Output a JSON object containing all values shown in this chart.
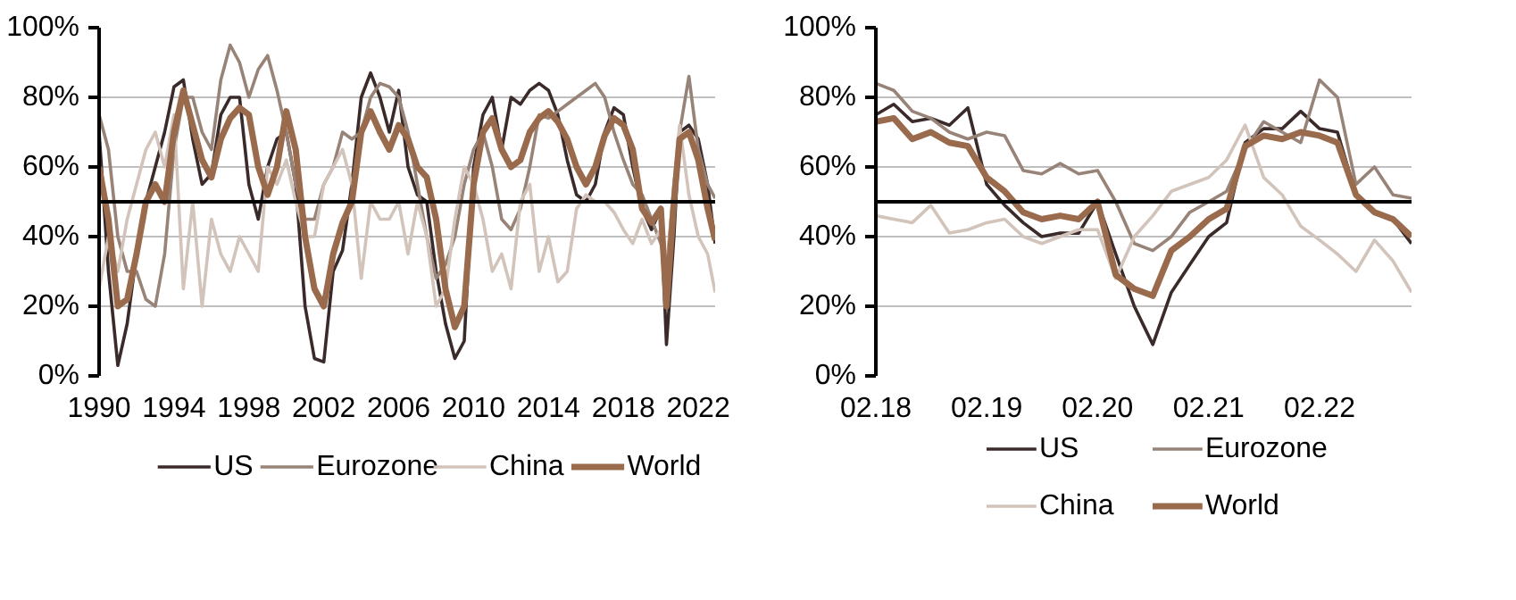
{
  "chart_data": [
    {
      "type": "line",
      "x": [
        1990,
        1990.5,
        1991,
        1991.5,
        1992,
        1992.5,
        1993,
        1993.5,
        1994,
        1994.5,
        1995,
        1995.5,
        1996,
        1996.5,
        1997,
        1997.5,
        1998,
        1998.5,
        1999,
        1999.5,
        2000,
        2000.5,
        2001,
        2001.5,
        2002,
        2002.5,
        2003,
        2003.5,
        2004,
        2004.5,
        2005,
        2005.5,
        2006,
        2006.5,
        2007,
        2007.5,
        2008,
        2008.5,
        2009,
        2009.5,
        2010,
        2010.5,
        2011,
        2011.5,
        2012,
        2012.5,
        2013,
        2013.5,
        2014,
        2014.5,
        2015,
        2015.5,
        2016,
        2016.5,
        2017,
        2017.5,
        2018,
        2018.5,
        2019,
        2019.5,
        2020,
        2020.3,
        2020.7,
        2021,
        2021.5,
        2022,
        2022.5,
        2022.9
      ],
      "series": [
        {
          "name": "US",
          "color": "#3b2a2a",
          "values": [
            70,
            30,
            3,
            15,
            35,
            50,
            60,
            70,
            83,
            85,
            68,
            55,
            58,
            75,
            80,
            80,
            55,
            45,
            60,
            68,
            70,
            55,
            20,
            5,
            4,
            30,
            36,
            55,
            80,
            87,
            80,
            70,
            82,
            60,
            52,
            50,
            30,
            15,
            5,
            10,
            60,
            75,
            80,
            65,
            80,
            78,
            82,
            84,
            82,
            75,
            62,
            52,
            50,
            55,
            70,
            77,
            75,
            60,
            48,
            42,
            48,
            9,
            40,
            70,
            72,
            68,
            55,
            38
          ]
        },
        {
          "name": "Eurozone",
          "color": "#978377",
          "values": [
            75,
            65,
            40,
            30,
            30,
            22,
            20,
            35,
            65,
            80,
            80,
            70,
            65,
            85,
            95,
            90,
            80,
            88,
            92,
            82,
            70,
            55,
            45,
            45,
            55,
            60,
            70,
            68,
            70,
            80,
            84,
            83,
            80,
            70,
            55,
            40,
            28,
            32,
            40,
            55,
            65,
            70,
            60,
            45,
            42,
            48,
            60,
            75,
            74,
            76,
            78,
            80,
            82,
            84,
            80,
            70,
            62,
            55,
            52,
            45,
            38,
            30,
            55,
            70,
            86,
            65,
            55,
            51
          ]
        },
        {
          "name": "China",
          "color": "#d2c4ba",
          "values": [
            25,
            40,
            30,
            45,
            55,
            65,
            70,
            60,
            75,
            25,
            50,
            20,
            45,
            35,
            30,
            40,
            35,
            30,
            60,
            55,
            62,
            50,
            40,
            40,
            55,
            60,
            65,
            55,
            28,
            50,
            45,
            45,
            50,
            35,
            50,
            40,
            20,
            25,
            45,
            60,
            55,
            45,
            30,
            35,
            25,
            50,
            55,
            30,
            40,
            27,
            30,
            48,
            52,
            50,
            50,
            47,
            42,
            38,
            45,
            38,
            42,
            28,
            55,
            72,
            52,
            40,
            35,
            24
          ]
        },
        {
          "name": "World",
          "color": "#9a6a4d",
          "values": [
            60,
            45,
            20,
            22,
            35,
            50,
            55,
            50,
            70,
            82,
            72,
            62,
            57,
            68,
            74,
            77,
            75,
            60,
            52,
            60,
            76,
            65,
            40,
            25,
            20,
            35,
            44,
            50,
            70,
            76,
            70,
            65,
            72,
            68,
            60,
            57,
            45,
            25,
            14,
            20,
            55,
            70,
            74,
            65,
            60,
            62,
            70,
            74,
            76,
            73,
            68,
            60,
            55,
            60,
            69,
            74,
            72,
            65,
            48,
            44,
            48,
            20,
            50,
            68,
            70,
            62,
            48,
            39
          ]
        }
      ],
      "xlim": [
        1990,
        2022.9
      ],
      "xticks": [
        1990,
        1994,
        1998,
        2002,
        2006,
        2010,
        2014,
        2018,
        2022
      ],
      "ylim": [
        0,
        100
      ],
      "yticks": [
        {
          "value": 0,
          "label": "0%"
        },
        {
          "value": 20,
          "label": "20%"
        },
        {
          "value": 40,
          "label": "40%"
        },
        {
          "value": 60,
          "label": "60%"
        },
        {
          "value": 80,
          "label": "80%"
        },
        {
          "value": 100,
          "label": "100%"
        }
      ],
      "ref_lines": [
        {
          "axis": "y",
          "value": 50,
          "color": "#000000"
        }
      ],
      "grid": "y",
      "legend": "bottom",
      "line_style": "solid"
    },
    {
      "type": "line",
      "x": [
        "2018-02",
        "2018-04",
        "2018-06",
        "2018-08",
        "2018-10",
        "2018-12",
        "2019-02",
        "2019-04",
        "2019-06",
        "2019-08",
        "2019-10",
        "2019-12",
        "2020-02",
        "2020-04",
        "2020-06",
        "2020-08",
        "2020-10",
        "2020-12",
        "2021-02",
        "2021-04",
        "2021-06",
        "2021-08",
        "2021-10",
        "2021-12",
        "2022-02",
        "2022-04",
        "2022-06",
        "2022-08",
        "2022-10",
        "2022-12"
      ],
      "series": [
        {
          "name": "US",
          "color": "#3b2a2a",
          "values": [
            75,
            78,
            73,
            74,
            72,
            77,
            55,
            49,
            44,
            40,
            41,
            41,
            50,
            35,
            20,
            9,
            24,
            32,
            40,
            44,
            67,
            71,
            71,
            76,
            71,
            70,
            52,
            47,
            45,
            38
          ]
        },
        {
          "name": "Eurozone",
          "color": "#978377",
          "values": [
            84,
            82,
            76,
            74,
            70,
            68,
            70,
            69,
            59,
            58,
            61,
            58,
            59,
            50,
            38,
            36,
            40,
            47,
            50,
            53,
            65,
            73,
            70,
            67,
            85,
            80,
            55,
            60,
            52,
            51
          ]
        },
        {
          "name": "China",
          "color": "#d2c4ba",
          "values": [
            46,
            45,
            44,
            49,
            41,
            42,
            44,
            45,
            40,
            38,
            40,
            42,
            42,
            28,
            40,
            46,
            53,
            55,
            57,
            62,
            72,
            57,
            52,
            43,
            39,
            35,
            30,
            39,
            33,
            24
          ]
        },
        {
          "name": "World",
          "color": "#9a6a4d",
          "values": [
            73,
            74,
            68,
            70,
            67,
            66,
            57,
            53,
            47,
            45,
            46,
            45,
            50,
            29,
            25,
            23,
            36,
            40,
            45,
            48,
            66,
            69,
            68,
            70,
            69,
            67,
            52,
            47,
            45,
            40
          ]
        }
      ],
      "xlim": [
        "2018-02",
        "2022-12"
      ],
      "xticks": [
        {
          "value": "2018-02",
          "label": "02.18"
        },
        {
          "value": "2019-02",
          "label": "02.19"
        },
        {
          "value": "2020-02",
          "label": "02.20"
        },
        {
          "value": "2021-02",
          "label": "02.21"
        },
        {
          "value": "2022-02",
          "label": "02.22"
        }
      ],
      "ylim": [
        0,
        100
      ],
      "yticks": [
        {
          "value": 0,
          "label": "0%"
        },
        {
          "value": 20,
          "label": "20%"
        },
        {
          "value": 40,
          "label": "40%"
        },
        {
          "value": 60,
          "label": "60%"
        },
        {
          "value": 80,
          "label": "80%"
        },
        {
          "value": 100,
          "label": "100%"
        }
      ],
      "ref_lines": [
        {
          "axis": "y",
          "value": 50,
          "color": "#000000"
        }
      ],
      "grid": "y",
      "legend": "bottom",
      "line_style": "solid"
    }
  ]
}
